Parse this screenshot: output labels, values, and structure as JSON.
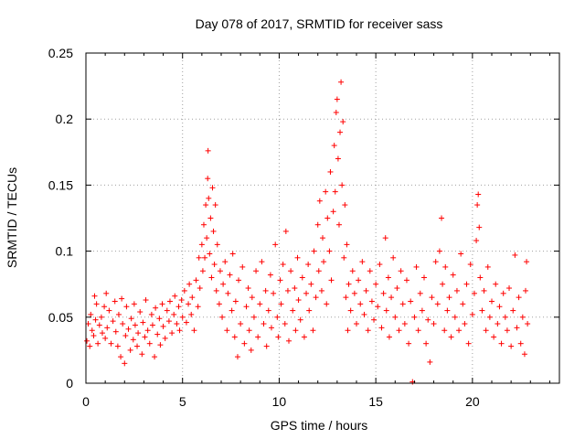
{
  "chart_data": {
    "type": "scatter",
    "title": "Day 078 of 2017, SRMTID for receiver sass",
    "xlabel": "GPS time / hours",
    "ylabel": "SRMTID / TECUs",
    "xlim": [
      0,
      24.5
    ],
    "ylim": [
      0,
      0.25
    ],
    "x_ticks": [
      0,
      5,
      10,
      15,
      20
    ],
    "x_tick_labels": [
      "0",
      "5",
      "10",
      "15",
      "20"
    ],
    "y_ticks": [
      0,
      0.05,
      0.1,
      0.15,
      0.2,
      0.25
    ],
    "y_tick_labels": [
      "0",
      "0.05",
      "0.1",
      "0.15",
      "0.2",
      "0.25"
    ],
    "grid": true,
    "marker": "plus",
    "color": "#ff0000",
    "series": [
      {
        "name": "SRMTID",
        "points": [
          [
            0.05,
            0.032
          ],
          [
            0.12,
            0.045
          ],
          [
            0.2,
            0.028
          ],
          [
            0.25,
            0.052
          ],
          [
            0.32,
            0.04
          ],
          [
            0.4,
            0.036
          ],
          [
            0.45,
            0.066
          ],
          [
            0.5,
            0.048
          ],
          [
            0.55,
            0.06
          ],
          [
            0.62,
            0.03
          ],
          [
            0.7,
            0.044
          ],
          [
            0.8,
            0.05
          ],
          [
            0.85,
            0.038
          ],
          [
            0.95,
            0.058
          ],
          [
            1.0,
            0.034
          ],
          [
            1.05,
            0.068
          ],
          [
            1.1,
            0.042
          ],
          [
            1.2,
            0.055
          ],
          [
            1.3,
            0.03
          ],
          [
            1.4,
            0.047
          ],
          [
            1.5,
            0.062
          ],
          [
            1.55,
            0.039
          ],
          [
            1.65,
            0.028
          ],
          [
            1.7,
            0.052
          ],
          [
            1.8,
            0.02
          ],
          [
            1.85,
            0.064
          ],
          [
            1.9,
            0.045
          ],
          [
            2.0,
            0.015
          ],
          [
            2.05,
            0.036
          ],
          [
            2.1,
            0.058
          ],
          [
            2.2,
            0.041
          ],
          [
            2.3,
            0.025
          ],
          [
            2.35,
            0.049
          ],
          [
            2.45,
            0.033
          ],
          [
            2.5,
            0.06
          ],
          [
            2.55,
            0.044
          ],
          [
            2.65,
            0.028
          ],
          [
            2.7,
            0.038
          ],
          [
            2.8,
            0.054
          ],
          [
            2.9,
            0.022
          ],
          [
            2.95,
            0.046
          ],
          [
            3.05,
            0.035
          ],
          [
            3.1,
            0.063
          ],
          [
            3.2,
            0.04
          ],
          [
            3.3,
            0.03
          ],
          [
            3.4,
            0.052
          ],
          [
            3.45,
            0.044
          ],
          [
            3.55,
            0.02
          ],
          [
            3.6,
            0.057
          ],
          [
            3.7,
            0.037
          ],
          [
            3.8,
            0.049
          ],
          [
            3.85,
            0.029
          ],
          [
            3.95,
            0.06
          ],
          [
            4.0,
            0.043
          ],
          [
            4.1,
            0.034
          ],
          [
            4.2,
            0.055
          ],
          [
            4.3,
            0.047
          ],
          [
            4.35,
            0.062
          ],
          [
            4.45,
            0.038
          ],
          [
            4.55,
            0.052
          ],
          [
            4.6,
            0.066
          ],
          [
            4.7,
            0.045
          ],
          [
            4.8,
            0.058
          ],
          [
            4.85,
            0.04
          ],
          [
            4.95,
            0.063
          ],
          [
            5.0,
            0.05
          ],
          [
            5.1,
            0.07
          ],
          [
            5.2,
            0.046
          ],
          [
            5.3,
            0.06
          ],
          [
            5.35,
            0.075
          ],
          [
            5.45,
            0.052
          ],
          [
            5.5,
            0.065
          ],
          [
            5.6,
            0.04
          ],
          [
            5.7,
            0.078
          ],
          [
            5.8,
            0.058
          ],
          [
            5.85,
            0.095
          ],
          [
            5.9,
            0.072
          ],
          [
            6.0,
            0.105
          ],
          [
            6.05,
            0.085
          ],
          [
            6.1,
            0.12
          ],
          [
            6.15,
            0.095
          ],
          [
            6.2,
            0.135
          ],
          [
            6.25,
            0.11
          ],
          [
            6.3,
            0.155
          ],
          [
            6.32,
            0.176
          ],
          [
            6.35,
            0.14
          ],
          [
            6.4,
            0.098
          ],
          [
            6.45,
            0.125
          ],
          [
            6.5,
            0.08
          ],
          [
            6.55,
            0.148
          ],
          [
            6.6,
            0.115
          ],
          [
            6.65,
            0.09
          ],
          [
            6.7,
            0.135
          ],
          [
            6.75,
            0.07
          ],
          [
            6.8,
            0.105
          ],
          [
            6.9,
            0.06
          ],
          [
            6.95,
            0.085
          ],
          [
            7.05,
            0.05
          ],
          [
            7.1,
            0.075
          ],
          [
            7.2,
            0.092
          ],
          [
            7.3,
            0.04
          ],
          [
            7.35,
            0.068
          ],
          [
            7.45,
            0.082
          ],
          [
            7.55,
            0.055
          ],
          [
            7.6,
            0.098
          ],
          [
            7.7,
            0.035
          ],
          [
            7.75,
            0.062
          ],
          [
            7.85,
            0.02
          ],
          [
            7.9,
            0.078
          ],
          [
            8.0,
            0.045
          ],
          [
            8.1,
            0.088
          ],
          [
            8.2,
            0.03
          ],
          [
            8.3,
            0.058
          ],
          [
            8.4,
            0.072
          ],
          [
            8.45,
            0.04
          ],
          [
            8.55,
            0.025
          ],
          [
            8.6,
            0.065
          ],
          [
            8.7,
            0.05
          ],
          [
            8.8,
            0.085
          ],
          [
            8.9,
            0.035
          ],
          [
            9.0,
            0.06
          ],
          [
            9.1,
            0.092
          ],
          [
            9.2,
            0.045
          ],
          [
            9.3,
            0.07
          ],
          [
            9.35,
            0.028
          ],
          [
            9.45,
            0.055
          ],
          [
            9.55,
            0.082
          ],
          [
            9.6,
            0.042
          ],
          [
            9.7,
            0.068
          ],
          [
            9.8,
            0.105
          ],
          [
            9.9,
            0.05
          ],
          [
            9.95,
            0.035
          ],
          [
            10.05,
            0.078
          ],
          [
            10.1,
            0.06
          ],
          [
            10.2,
            0.09
          ],
          [
            10.3,
            0.045
          ],
          [
            10.35,
            0.115
          ],
          [
            10.45,
            0.07
          ],
          [
            10.5,
            0.032
          ],
          [
            10.6,
            0.085
          ],
          [
            10.7,
            0.055
          ],
          [
            10.8,
            0.072
          ],
          [
            10.85,
            0.04
          ],
          [
            10.95,
            0.095
          ],
          [
            11.0,
            0.063
          ],
          [
            11.1,
            0.048
          ],
          [
            11.2,
            0.08
          ],
          [
            11.3,
            0.035
          ],
          [
            11.4,
            0.068
          ],
          [
            11.5,
            0.09
          ],
          [
            11.55,
            0.055
          ],
          [
            11.65,
            0.075
          ],
          [
            11.75,
            0.04
          ],
          [
            11.8,
            0.1
          ],
          [
            11.9,
            0.065
          ],
          [
            12.0,
            0.12
          ],
          [
            12.05,
            0.085
          ],
          [
            12.1,
            0.138
          ],
          [
            12.2,
            0.07
          ],
          [
            12.25,
            0.11
          ],
          [
            12.3,
            0.092
          ],
          [
            12.4,
            0.145
          ],
          [
            12.45,
            0.06
          ],
          [
            12.5,
            0.125
          ],
          [
            12.6,
            0.1
          ],
          [
            12.65,
            0.16
          ],
          [
            12.7,
            0.078
          ],
          [
            12.8,
            0.13
          ],
          [
            12.85,
            0.18
          ],
          [
            12.9,
            0.145
          ],
          [
            12.95,
            0.205
          ],
          [
            13.0,
            0.215
          ],
          [
            13.05,
            0.17
          ],
          [
            13.1,
            0.12
          ],
          [
            13.15,
            0.19
          ],
          [
            13.2,
            0.228
          ],
          [
            13.25,
            0.15
          ],
          [
            13.3,
            0.198
          ],
          [
            13.35,
            0.095
          ],
          [
            13.4,
            0.135
          ],
          [
            13.45,
            0.065
          ],
          [
            13.5,
            0.105
          ],
          [
            13.55,
            0.04
          ],
          [
            13.6,
            0.075
          ],
          [
            13.7,
            0.055
          ],
          [
            13.8,
            0.085
          ],
          [
            13.9,
            0.068
          ],
          [
            14.0,
            0.045
          ],
          [
            14.1,
            0.078
          ],
          [
            14.2,
            0.06
          ],
          [
            14.3,
            0.092
          ],
          [
            14.4,
            0.052
          ],
          [
            14.5,
            0.07
          ],
          [
            14.6,
            0.04
          ],
          [
            14.7,
            0.085
          ],
          [
            14.8,
            0.062
          ],
          [
            14.9,
            0.048
          ],
          [
            15.0,
            0.075
          ],
          [
            15.1,
            0.058
          ],
          [
            15.2,
            0.09
          ],
          [
            15.3,
            0.042
          ],
          [
            15.4,
            0.068
          ],
          [
            15.5,
            0.11
          ],
          [
            15.55,
            0.055
          ],
          [
            15.65,
            0.08
          ],
          [
            15.7,
            0.035
          ],
          [
            15.8,
            0.065
          ],
          [
            15.9,
            0.095
          ],
          [
            16.0,
            0.05
          ],
          [
            16.1,
            0.072
          ],
          [
            16.2,
            0.04
          ],
          [
            16.3,
            0.085
          ],
          [
            16.4,
            0.06
          ],
          [
            16.5,
            0.045
          ],
          [
            16.6,
            0.078
          ],
          [
            16.7,
            0.03
          ],
          [
            16.8,
            0.062
          ],
          [
            16.9,
            0.001
          ],
          [
            17.0,
            0.05
          ],
          [
            17.1,
            0.088
          ],
          [
            17.2,
            0.04
          ],
          [
            17.3,
            0.068
          ],
          [
            17.4,
            0.055
          ],
          [
            17.5,
            0.08
          ],
          [
            17.6,
            0.03
          ],
          [
            17.7,
            0.048
          ],
          [
            17.8,
            0.016
          ],
          [
            17.9,
            0.065
          ],
          [
            18.0,
            0.045
          ],
          [
            18.1,
            0.092
          ],
          [
            18.2,
            0.06
          ],
          [
            18.3,
            0.1
          ],
          [
            18.4,
            0.125
          ],
          [
            18.45,
            0.075
          ],
          [
            18.55,
            0.04
          ],
          [
            18.6,
            0.088
          ],
          [
            18.7,
            0.055
          ],
          [
            18.8,
            0.065
          ],
          [
            18.9,
            0.035
          ],
          [
            19.0,
            0.082
          ],
          [
            19.1,
            0.05
          ],
          [
            19.2,
            0.07
          ],
          [
            19.3,
            0.04
          ],
          [
            19.4,
            0.098
          ],
          [
            19.5,
            0.06
          ],
          [
            19.6,
            0.045
          ],
          [
            19.7,
            0.075
          ],
          [
            19.8,
            0.03
          ],
          [
            19.9,
            0.09
          ],
          [
            20.0,
            0.052
          ],
          [
            20.1,
            0.068
          ],
          [
            20.2,
            0.108
          ],
          [
            20.25,
            0.135
          ],
          [
            20.3,
            0.143
          ],
          [
            20.35,
            0.118
          ],
          [
            20.4,
            0.08
          ],
          [
            20.5,
            0.055
          ],
          [
            20.6,
            0.07
          ],
          [
            20.7,
            0.04
          ],
          [
            20.8,
            0.088
          ],
          [
            20.9,
            0.05
          ],
          [
            21.0,
            0.062
          ],
          [
            21.1,
            0.035
          ],
          [
            21.2,
            0.075
          ],
          [
            21.3,
            0.045
          ],
          [
            21.4,
            0.058
          ],
          [
            21.5,
            0.03
          ],
          [
            21.6,
            0.068
          ],
          [
            21.7,
            0.05
          ],
          [
            21.8,
            0.04
          ],
          [
            21.9,
            0.072
          ],
          [
            22.0,
            0.028
          ],
          [
            22.1,
            0.055
          ],
          [
            22.2,
            0.097
          ],
          [
            22.3,
            0.042
          ],
          [
            22.4,
            0.065
          ],
          [
            22.5,
            0.03
          ],
          [
            22.6,
            0.05
          ],
          [
            22.7,
            0.022
          ],
          [
            22.75,
            0.07
          ],
          [
            22.8,
            0.092
          ],
          [
            22.85,
            0.045
          ]
        ]
      }
    ]
  }
}
